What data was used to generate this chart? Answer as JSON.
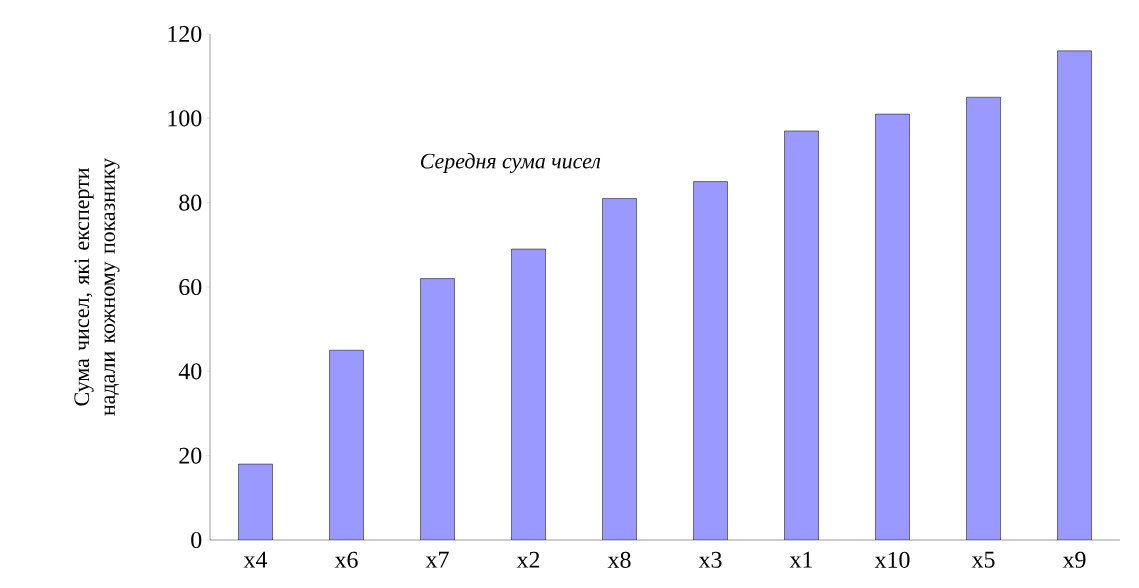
{
  "chart_data": {
    "type": "bar",
    "ylabel": "Сума чисел, які експерти надали кожному показнику",
    "annotations": [
      "Середня сума чисел"
    ],
    "categories": [
      "x4",
      "x6",
      "x7",
      "x2",
      "x8",
      "x3",
      "x1",
      "x10",
      "x5",
      "x9"
    ],
    "values": [
      18,
      45,
      62,
      69,
      81,
      85,
      97,
      101,
      105,
      116
    ],
    "color": "#9999ff",
    "ylim": [
      0,
      120
    ],
    "yticks": [
      0,
      20,
      40,
      60,
      80,
      100,
      120
    ]
  }
}
